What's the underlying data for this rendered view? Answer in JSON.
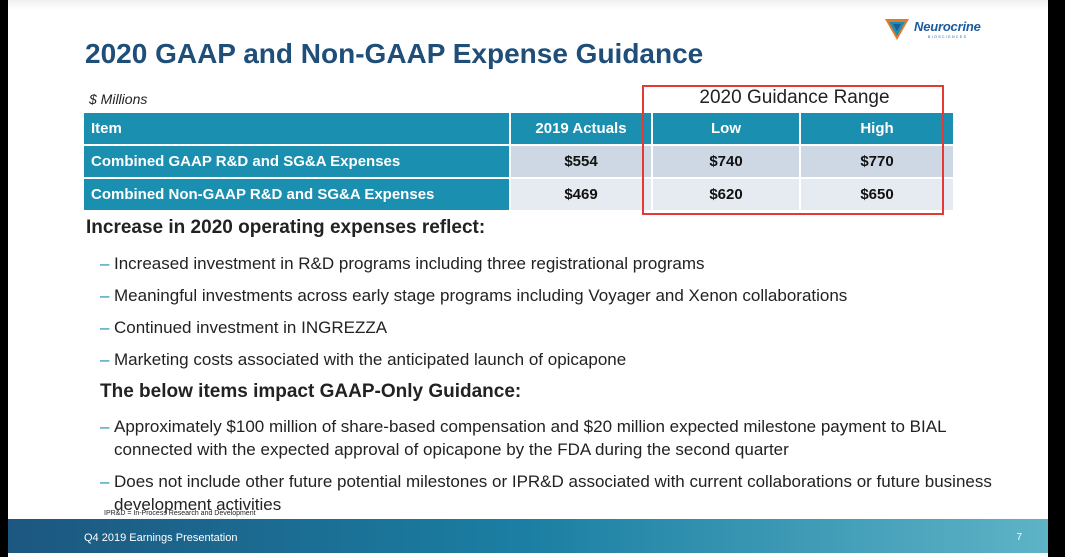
{
  "title": "2020 GAAP and Non-GAAP Expense Guidance",
  "logo": {
    "name": "Neurocrine",
    "tagline": "BIOSCIENCES"
  },
  "table": {
    "units": "$ Millions",
    "range_label": "2020 Guidance Range",
    "headers": [
      "Item",
      "2019 Actuals",
      "Low",
      "High"
    ],
    "rows": [
      {
        "item": "Combined GAAP R&D and SG&A Expenses",
        "actuals": "$554",
        "low": "$740",
        "high": "$770"
      },
      {
        "item": "Combined Non-GAAP R&D and SG&A Expenses",
        "actuals": "$469",
        "low": "$620",
        "high": "$650"
      }
    ]
  },
  "subhead": "Increase in 2020 operating expenses reflect:",
  "bullets": [
    "Increased investment in R&D programs including three registrational programs",
    "Meaningful investments across early stage programs including Voyager and Xenon collaborations",
    "Continued investment in INGREZZA",
    "Marketing costs associated with the anticipated launch of opicapone"
  ],
  "subhead2": "The below items impact GAAP-Only Guidance:",
  "bullets2": [
    "Approximately $100 million of share-based compensation and $20 million expected milestone payment to BIAL connected with the expected approval of opicapone by the FDA during the second quarter",
    "Does not include other future potential milestones or IPR&D associated with current collaborations or future business development activities"
  ],
  "footnote": "IPR&D = In-Process Research and Development",
  "footer": {
    "text": "Q4 2019 Earnings Presentation",
    "page": "7"
  },
  "colors": {
    "title": "#1f4e79",
    "table_header": "#1a8fb0",
    "highlight": "#e53935"
  }
}
